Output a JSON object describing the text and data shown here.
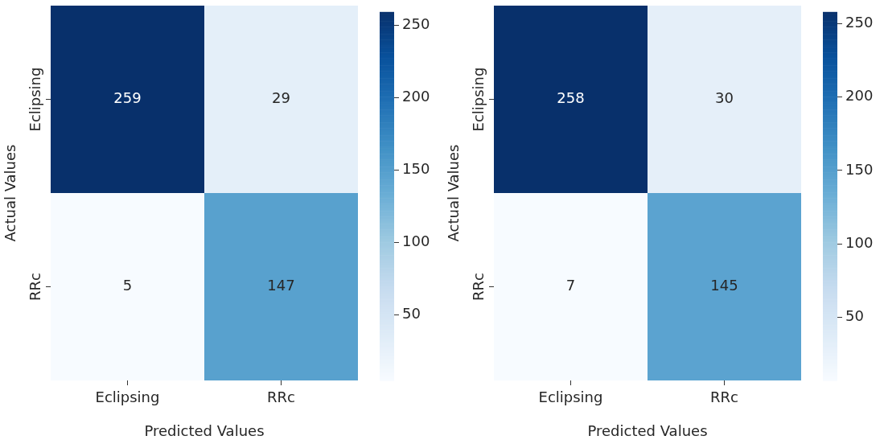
{
  "chart_data": [
    {
      "type": "heatmap",
      "xlabel": "Predicted Values",
      "ylabel": "Actual Values",
      "categories": [
        "Eclipsing",
        "RRc"
      ],
      "y_categories": [
        "Eclipsing",
        "RRc"
      ],
      "cells": [
        [
          259,
          29
        ],
        [
          5,
          147
        ]
      ],
      "clim": [
        5,
        259
      ],
      "cticks": [
        50,
        100,
        150,
        200,
        250
      ],
      "data_labels": true
    },
    {
      "type": "heatmap",
      "xlabel": "Predicted Values",
      "ylabel": "Actual Values",
      "categories": [
        "Eclipsing",
        "RRc"
      ],
      "y_categories": [
        "Eclipsing",
        "RRc"
      ],
      "cells": [
        [
          258,
          30
        ],
        [
          7,
          145
        ]
      ],
      "clim": [
        7,
        258
      ],
      "cticks": [
        50,
        100,
        150,
        200,
        250
      ],
      "data_labels": true
    }
  ]
}
